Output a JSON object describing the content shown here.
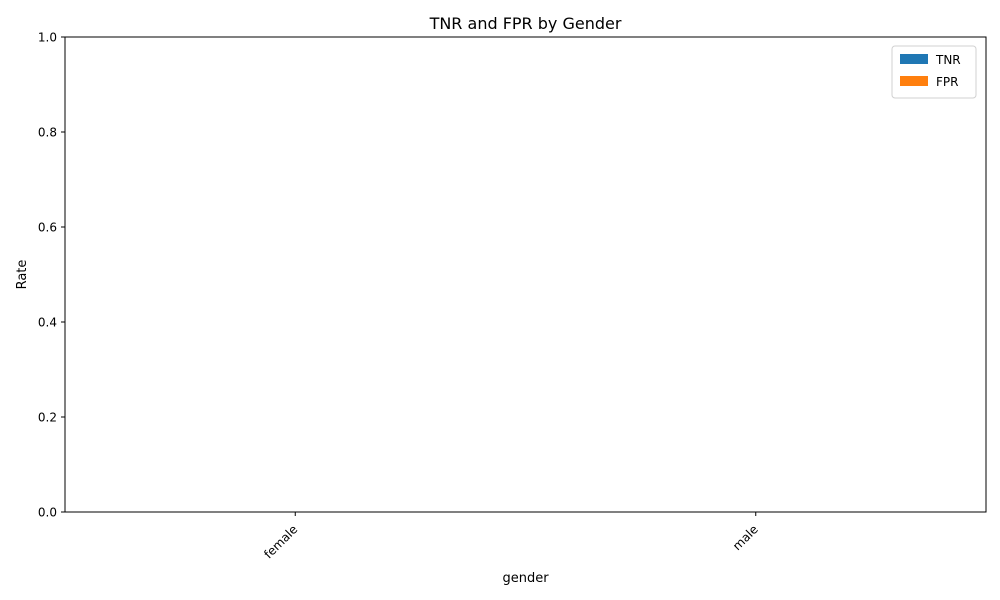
{
  "chart_data": {
    "type": "bar",
    "title": "TNR and FPR by Gender",
    "xlabel": "gender",
    "ylabel": "Rate",
    "categories": [
      "female",
      "male"
    ],
    "series": [
      {
        "name": "TNR",
        "values": [
          0,
          0
        ],
        "color": "#1f77b4"
      },
      {
        "name": "FPR",
        "values": [
          0,
          0
        ],
        "color": "#ff7f0e"
      }
    ],
    "ylim": [
      0,
      1
    ],
    "yticks": [
      0.0,
      0.2,
      0.4,
      0.6,
      0.8,
      1.0
    ],
    "ytick_labels": [
      "0.0",
      "0.2",
      "0.4",
      "0.6",
      "0.8",
      "1.0"
    ],
    "xtick_rotation_deg": 45,
    "grid": false,
    "legend_position": "top-right"
  }
}
